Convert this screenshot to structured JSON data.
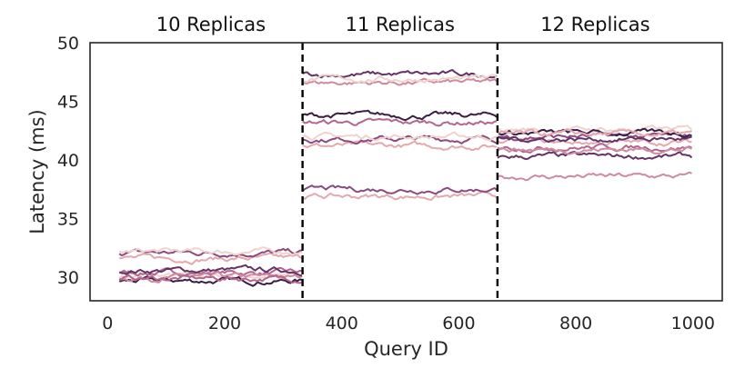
{
  "chart_data": {
    "type": "line",
    "xlabel": "Query ID",
    "ylabel": "Latency (ms)",
    "xlim": [
      -30,
      1050
    ],
    "ylim": [
      28,
      50
    ],
    "xticks": [
      0,
      200,
      400,
      600,
      800,
      1000
    ],
    "yticks": [
      30,
      35,
      40,
      45,
      50
    ],
    "grid": false,
    "legend": "none",
    "palette": [
      "#f0d3cc",
      "#e3a9ae",
      "#cf8aa0",
      "#b2668f",
      "#8c4a7f",
      "#633366",
      "#3b1d45"
    ],
    "dividers": [
      {
        "x": 333,
        "color": "#000000",
        "style": "dashed"
      },
      {
        "x": 666,
        "color": "#000000",
        "style": "dashed"
      }
    ],
    "sections": [
      {
        "label": "10 Replicas",
        "x_start": 20,
        "x_end": 333,
        "series_levels": [
          30.1,
          30.4,
          29.7,
          30.0,
          30.6,
          31.6,
          32.1,
          32.2,
          29.9
        ]
      },
      {
        "label": "11 Replicas",
        "x_start": 333,
        "x_end": 666,
        "series_levels": [
          41.2,
          41.8,
          42.0,
          43.2,
          43.8,
          46.6,
          47.3,
          36.9,
          37.5,
          46.9
        ]
      },
      {
        "label": "12 Replicas",
        "x_start": 666,
        "x_end": 1000,
        "series_levels": [
          38.6,
          40.3,
          41.5,
          42.0,
          42.6,
          41.1,
          42.3,
          40.9,
          41.8,
          42.2
        ]
      }
    ]
  }
}
